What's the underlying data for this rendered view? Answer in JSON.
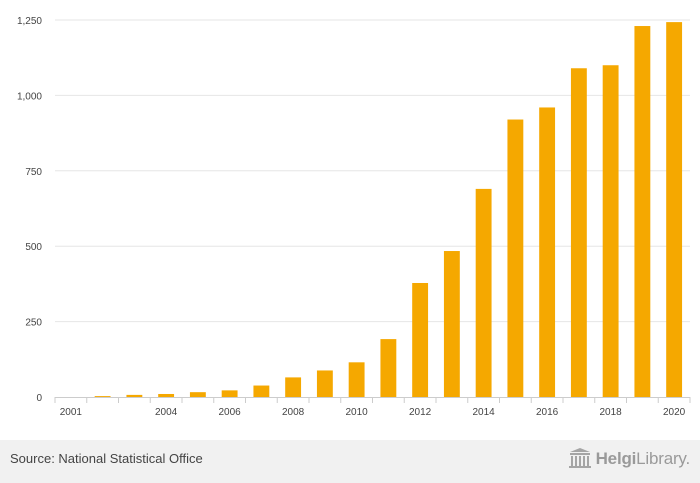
{
  "chart_data": {
    "type": "bar",
    "title": "",
    "xlabel": "",
    "ylabel": "",
    "categories": [
      "2001",
      "2002",
      "2003",
      "2004",
      "2005",
      "2006",
      "2007",
      "2008",
      "2009",
      "2010",
      "2011",
      "2012",
      "2013",
      "2014",
      "2015",
      "2016",
      "2017",
      "2018",
      "2019",
      "2020"
    ],
    "values": [
      0,
      3,
      7,
      10,
      16,
      22,
      38,
      65,
      88,
      115,
      192,
      378,
      484,
      690,
      920,
      960,
      1090,
      1100,
      1230,
      1243
    ],
    "x_tick_labels": [
      "2001",
      "2004",
      "2006",
      "2008",
      "2010",
      "2012",
      "2014",
      "2016",
      "2018",
      "2020"
    ],
    "y_ticks": [
      0,
      250,
      500,
      750,
      1000,
      1250
    ],
    "y_tick_labels": [
      "0",
      "250",
      "500",
      "750",
      "1,000",
      "1,250"
    ],
    "ylim": [
      0,
      1250
    ],
    "grid": true,
    "bar_color": "#f5a800"
  },
  "footer": {
    "source": "Source: National Statistical Office",
    "brand_bold": "Helgi",
    "brand_light": "Library."
  }
}
